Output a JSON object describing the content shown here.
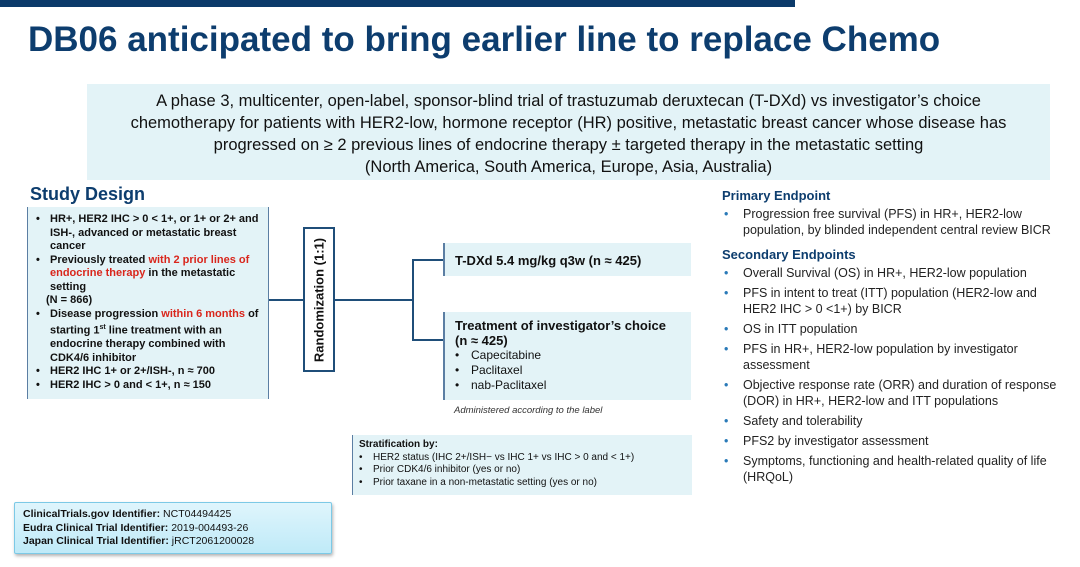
{
  "title": "DB06 anticipated to bring earlier line to replace Chemo",
  "intro": [
    "A phase 3, multicenter, open-label, sponsor-blind trial of trastuzumab deruxtecan (T-DXd) vs investigator’s choice",
    "chemotherapy for patients with HER2-low, hormone receptor (HR) positive, metastatic breast cancer whose disease has",
    "progressed on ≥ 2 previous lines of endocrine therapy ± targeted therapy in the metastatic setting",
    "(North America, South America, Europe, Asia, Australia)"
  ],
  "study_design": {
    "title": "Study Design",
    "b1": "HR+, HER2 IHC > 0 < 1+, or 1+ or 2+ and ISH-, advanced or metastatic breast cancer",
    "b2_pre": "Previously treated ",
    "b2_red": "with 2 prior lines of endocrine therapy",
    "b2_post": " in the metastatic setting",
    "n": "(N = 866)",
    "b3_pre": "Disease progression ",
    "b3_red": "within 6 months",
    "b3_mid": " of starting 1",
    "b3_sup": "st",
    "b3_post": " line treatment with an endocrine therapy combined with CDK4/6 inhibitor",
    "b4": "HER2 IHC 1+ or 2+/ISH-, n ≈ 700",
    "b5": "HER2 IHC > 0 and < 1+, n ≈ 150"
  },
  "randomization": "Randomization (1:1)",
  "arm1": "T-DXd 5.4 mg/kg q3w (n ≈ 425)",
  "arm2": {
    "title": "Treatment of investigator’s choice",
    "n": "(n ≈ 425)",
    "items": [
      "Capecitabine",
      "Paclitaxel",
      "nab-Paclitaxel"
    ]
  },
  "administered": "Administered according to the label",
  "stratification": {
    "title": "Stratification by:",
    "items": [
      "HER2 status (IHC 2+/ISH− vs IHC 1+ vs IHC > 0 and < 1+)",
      "Prior CDK4/6 inhibitor (yes or no)",
      "Prior taxane in a non-metastatic setting (yes or no)"
    ]
  },
  "identifiers": [
    {
      "label": "ClinicalTrials.gov Identifier:",
      "value": " NCT04494425"
    },
    {
      "label": "Eudra Clinical Trial Identifier:",
      "value": " 2019-004493-26"
    },
    {
      "label": "Japan Clinical Trial Identifier:",
      "value": " jRCT2061200028"
    }
  ],
  "primary": {
    "title": "Primary Endpoint",
    "items": [
      "Progression free survival (PFS) in HR+, HER2-low population, by blinded independent central review BICR"
    ]
  },
  "secondary": {
    "title": "Secondary Endpoints",
    "items": [
      "Overall Survival (OS) in HR+, HER2-low population",
      "PFS in intent to treat (ITT) population (HER2-low and HER2 IHC > 0 <1+) by BICR",
      "OS in ITT population",
      "PFS in HR+, HER2-low population by investigator assessment",
      "Objective response rate (ORR) and duration of response (DOR) in HR+, HER2-low and ITT populations",
      "Safety and tolerability",
      "PFS2 by investigator assessment",
      "Symptoms, functioning and health-related quality of life (HRQoL)"
    ]
  }
}
